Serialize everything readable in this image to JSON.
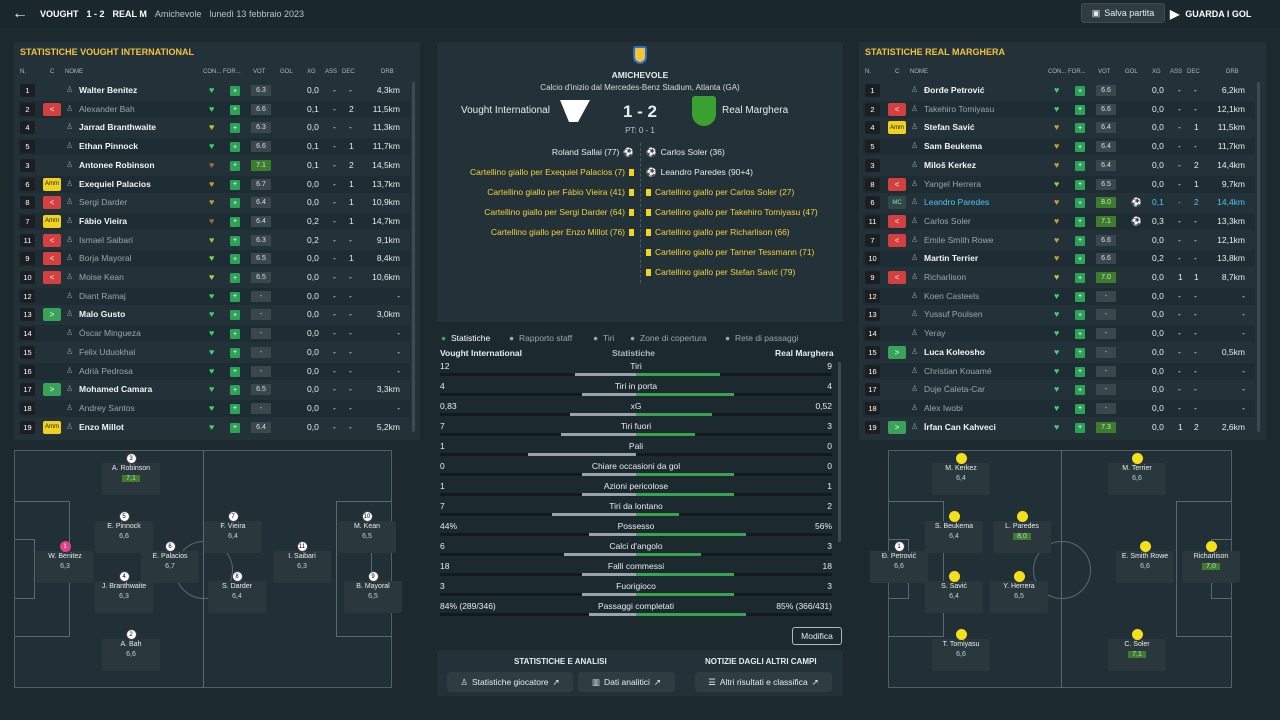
{
  "topbar": {
    "home": "VOUGHT",
    "score": "1 - 2",
    "away": "REAL M",
    "competition": "Amichevole",
    "date": "lunedì 13 febbraio 2023",
    "save": "Salva partita",
    "watch": "GUARDA I GOL"
  },
  "headers": {
    "n": "N.",
    "c": "C",
    "nome": "NOME",
    "con": "CON...",
    "for": "FOR...",
    "vot": "VOT",
    "gol": "GOL",
    "xg": "XG",
    "ass": "ASS",
    "dec": "DEC",
    "drb": "DRB"
  },
  "left": {
    "title": "STATISTICHE VOUGHT INTERNATIONAL",
    "players": [
      {
        "n": "1",
        "badge": "",
        "name": "Walter Benitez",
        "dim": false,
        "heart": "#3fd06a",
        "form": "+",
        "vot": "6.3",
        "vg": false,
        "gol": "",
        "xg": "0,0",
        "ass": "-",
        "dec": "-",
        "drb": "4,3km"
      },
      {
        "n": "2",
        "badge": "out",
        "name": "Alexander Bah",
        "dim": true,
        "heart": "#3fd06a",
        "form": "+",
        "vot": "6.6",
        "vg": false,
        "gol": "",
        "xg": "0,1",
        "ass": "-",
        "dec": "2",
        "drb": "11,5km"
      },
      {
        "n": "4",
        "badge": "",
        "name": "Jarrad Branthwaite",
        "dim": false,
        "heart": "#c6c23a",
        "form": "+",
        "vot": "6.3",
        "vg": false,
        "gol": "",
        "xg": "0,0",
        "ass": "-",
        "dec": "-",
        "drb": "11,3km"
      },
      {
        "n": "5",
        "badge": "",
        "name": "Ethan Pinnock",
        "dim": false,
        "heart": "#3fd06a",
        "form": "+",
        "vot": "6.6",
        "vg": false,
        "gol": "",
        "xg": "0,1",
        "ass": "-",
        "dec": "1",
        "drb": "11,7km"
      },
      {
        "n": "3",
        "badge": "",
        "name": "Antonee Robinson",
        "dim": false,
        "heart": "#a0703a",
        "form": "+",
        "vot": "7.1",
        "vg": true,
        "gol": "",
        "xg": "0,1",
        "ass": "-",
        "dec": "2",
        "drb": "14,5km"
      },
      {
        "n": "6",
        "badge": "amm",
        "name": "Exequiel Palacios",
        "dim": false,
        "heart": "#c89a3a",
        "form": "+",
        "vot": "6.7",
        "vg": false,
        "gol": "",
        "xg": "0,0",
        "ass": "-",
        "dec": "1",
        "drb": "13,7km"
      },
      {
        "n": "8",
        "badge": "out",
        "name": "Sergi Darder",
        "dim": true,
        "heart": "#c89a3a",
        "form": "+",
        "vot": "6.4",
        "vg": false,
        "gol": "",
        "xg": "0,0",
        "ass": "-",
        "dec": "1",
        "drb": "10,9km"
      },
      {
        "n": "7",
        "badge": "amm",
        "name": "Fábio Vieira",
        "dim": false,
        "heart": "#a0703a",
        "form": "+",
        "vot": "6.4",
        "vg": false,
        "gol": "",
        "xg": "0,2",
        "ass": "-",
        "dec": "1",
        "drb": "14,7km"
      },
      {
        "n": "11",
        "badge": "out",
        "name": "Ismael Saibari",
        "dim": true,
        "heart": "#7ad04a",
        "form": "+",
        "vot": "6.3",
        "vg": false,
        "gol": "",
        "xg": "0,2",
        "ass": "-",
        "dec": "-",
        "drb": "9,1km"
      },
      {
        "n": "9",
        "badge": "out",
        "name": "Borja Mayoral",
        "dim": true,
        "heart": "#7ad04a",
        "form": "+",
        "vot": "6.5",
        "vg": false,
        "gol": "",
        "xg": "0,0",
        "ass": "-",
        "dec": "1",
        "drb": "8,4km"
      },
      {
        "n": "10",
        "badge": "out",
        "name": "Moise Kean",
        "dim": true,
        "heart": "#c6c23a",
        "form": "+",
        "vot": "6.5",
        "vg": false,
        "gol": "",
        "xg": "0,0",
        "ass": "-",
        "dec": "-",
        "drb": "10,6km"
      },
      {
        "n": "12",
        "badge": "",
        "name": "Diant Ramaj",
        "dim": true,
        "heart": "#3fd06a",
        "form": "+",
        "vot": "-",
        "vg": false,
        "gol": "",
        "xg": "0,0",
        "ass": "-",
        "dec": "-",
        "drb": "-"
      },
      {
        "n": "13",
        "badge": "in",
        "name": "Malo Gusto",
        "dim": false,
        "heart": "#3fd06a",
        "form": "+",
        "vot": "-",
        "vg": false,
        "gol": "",
        "xg": "0,0",
        "ass": "-",
        "dec": "-",
        "drb": "3,0km"
      },
      {
        "n": "14",
        "badge": "",
        "name": "Óscar Mingueza",
        "dim": true,
        "heart": "#3fd06a",
        "form": "+",
        "vot": "-",
        "vg": false,
        "gol": "",
        "xg": "0,0",
        "ass": "-",
        "dec": "-",
        "drb": "-"
      },
      {
        "n": "15",
        "badge": "",
        "name": "Felix Uduokhai",
        "dim": true,
        "heart": "#3fd06a",
        "form": "+",
        "vot": "-",
        "vg": false,
        "gol": "",
        "xg": "0,0",
        "ass": "-",
        "dec": "-",
        "drb": "-"
      },
      {
        "n": "16",
        "badge": "",
        "name": "Adrià Pedrosa",
        "dim": true,
        "heart": "#3fd06a",
        "form": "+",
        "vot": "-",
        "vg": false,
        "gol": "",
        "xg": "0,0",
        "ass": "-",
        "dec": "-",
        "drb": "-"
      },
      {
        "n": "17",
        "badge": "in",
        "name": "Mohamed Camara",
        "dim": false,
        "heart": "#3fd06a",
        "form": "+",
        "vot": "6.5",
        "vg": false,
        "gol": "",
        "xg": "0,0",
        "ass": "-",
        "dec": "-",
        "drb": "3,3km"
      },
      {
        "n": "18",
        "badge": "",
        "name": "Andrey Santos",
        "dim": true,
        "heart": "#3fd06a",
        "form": "+",
        "vot": "-",
        "vg": false,
        "gol": "",
        "xg": "0,0",
        "ass": "-",
        "dec": "-",
        "drb": "-"
      },
      {
        "n": "19",
        "badge": "amm",
        "name": "Enzo Millot",
        "dim": false,
        "heart": "#3fd06a",
        "form": "+",
        "vot": "6.4",
        "vg": false,
        "gol": "",
        "xg": "0,0",
        "ass": "-",
        "dec": "-",
        "drb": "5,2km"
      }
    ],
    "pitch": [
      {
        "n": "3",
        "name": "A. Robinson",
        "r": "7,1",
        "g": true,
        "dot": "w"
      },
      {
        "n": "5",
        "name": "E. Pinnock",
        "r": "6,6",
        "g": false,
        "dot": "w"
      },
      {
        "n": "7",
        "name": "F. Vieira",
        "r": "6,4",
        "g": false,
        "dot": "w"
      },
      {
        "n": "10",
        "name": "M. Kean",
        "r": "6,5",
        "g": false,
        "dot": "w"
      },
      {
        "n": "1",
        "name": "W. Benitez",
        "r": "6,3",
        "g": false,
        "dot": "p"
      },
      {
        "n": "6",
        "name": "E. Palacios",
        "r": "6,7",
        "g": false,
        "dot": "w"
      },
      {
        "n": "11",
        "name": "I. Saibari",
        "r": "6,3",
        "g": false,
        "dot": "w"
      },
      {
        "n": "4",
        "name": "J. Branthwaite",
        "r": "6,3",
        "g": false,
        "dot": "w"
      },
      {
        "n": "8",
        "name": "S. Darder",
        "r": "6,4",
        "g": false,
        "dot": "w"
      },
      {
        "n": "9",
        "name": "B. Mayoral",
        "r": "6,5",
        "g": false,
        "dot": "w"
      },
      {
        "n": "2",
        "name": "A. Bah",
        "r": "6,6",
        "g": false,
        "dot": "w"
      }
    ]
  },
  "right": {
    "title": "STATISTICHE REAL MARGHERA",
    "players": [
      {
        "n": "1",
        "badge": "",
        "name": "Đorđe Petrović",
        "dim": false,
        "heart": "#3fd06a",
        "form": "+",
        "vot": "6.6",
        "vg": false,
        "gol": "",
        "xg": "0,0",
        "ass": "-",
        "dec": "-",
        "drb": "6,2km"
      },
      {
        "n": "2",
        "badge": "out",
        "name": "Takehiro Tomiyasu",
        "dim": true,
        "heart": "#3fd06a",
        "form": "+",
        "vot": "6.6",
        "vg": false,
        "gol": "",
        "xg": "0,0",
        "ass": "-",
        "dec": "-",
        "drb": "12,1km"
      },
      {
        "n": "4",
        "badge": "amm",
        "name": "Stefan Savić",
        "dim": false,
        "heart": "#c89a3a",
        "form": "+",
        "vot": "6.4",
        "vg": false,
        "gol": "",
        "xg": "0,0",
        "ass": "-",
        "dec": "1",
        "drb": "11,5km"
      },
      {
        "n": "5",
        "badge": "",
        "name": "Sam Beukema",
        "dim": false,
        "heart": "#c89a3a",
        "form": "+",
        "vot": "6.4",
        "vg": false,
        "gol": "",
        "xg": "0,0",
        "ass": "-",
        "dec": "-",
        "drb": "11,7km"
      },
      {
        "n": "3",
        "badge": "",
        "name": "Miloš Kerkez",
        "dim": false,
        "heart": "#c89a3a",
        "form": "+",
        "vot": "6.4",
        "vg": false,
        "gol": "",
        "xg": "0,0",
        "ass": "-",
        "dec": "2",
        "drb": "14,4km"
      },
      {
        "n": "8",
        "badge": "out",
        "name": "Yangel Herrera",
        "dim": true,
        "heart": "#7ad04a",
        "form": "+",
        "vot": "6.5",
        "vg": false,
        "gol": "",
        "xg": "0,0",
        "ass": "-",
        "dec": "1",
        "drb": "9,7km"
      },
      {
        "n": "6",
        "badge": "mc",
        "name": "Leandro Paredes",
        "dim": false,
        "hl": true,
        "heart": "#c89a3a",
        "form": "+",
        "vot": "8.0",
        "vg": true,
        "gol": "⚽",
        "xg": "0,1",
        "ass": "-",
        "dec": "2",
        "drb": "14,4km"
      },
      {
        "n": "11",
        "badge": "out",
        "name": "Carlos Soler",
        "dim": true,
        "heart": "#c89a3a",
        "form": "+",
        "vot": "7.1",
        "vg": true,
        "gol": "⚽",
        "xg": "0,3",
        "ass": "-",
        "dec": "-",
        "drb": "13,3km"
      },
      {
        "n": "7",
        "badge": "out",
        "name": "Emile Smith Rowe",
        "dim": true,
        "heart": "#c89a3a",
        "form": "+",
        "vot": "6.6",
        "vg": false,
        "gol": "",
        "xg": "0,0",
        "ass": "-",
        "dec": "-",
        "drb": "12,1km"
      },
      {
        "n": "10",
        "badge": "",
        "name": "Martin Terrier",
        "dim": false,
        "heart": "#c89a3a",
        "form": "+",
        "vot": "6.6",
        "vg": false,
        "gol": "",
        "xg": "0,2",
        "ass": "-",
        "dec": "-",
        "drb": "13,8km"
      },
      {
        "n": "9",
        "badge": "out",
        "name": "Richarlison",
        "dim": true,
        "heart": "#c6c23a",
        "form": "+",
        "vot": "7.0",
        "vg": true,
        "gol": "",
        "xg": "0,0",
        "ass": "1",
        "dec": "1",
        "drb": "8,7km"
      },
      {
        "n": "12",
        "badge": "",
        "name": "Koen Casteels",
        "dim": true,
        "heart": "#3fd06a",
        "form": "+",
        "vot": "-",
        "vg": false,
        "gol": "",
        "xg": "0,0",
        "ass": "-",
        "dec": "-",
        "drb": "-"
      },
      {
        "n": "13",
        "badge": "",
        "name": "Yussuf Poulsen",
        "dim": true,
        "heart": "#3fd06a",
        "form": "+",
        "vot": "-",
        "vg": false,
        "gol": "",
        "xg": "0,0",
        "ass": "-",
        "dec": "-",
        "drb": "-"
      },
      {
        "n": "14",
        "badge": "",
        "name": "Yeray",
        "dim": true,
        "heart": "#3fd06a",
        "form": "+",
        "vot": "-",
        "vg": false,
        "gol": "",
        "xg": "0,0",
        "ass": "-",
        "dec": "-",
        "drb": "-"
      },
      {
        "n": "15",
        "badge": "in",
        "name": "Luca Koleosho",
        "dim": false,
        "heart": "#3fd06a",
        "form": "+",
        "vot": "-",
        "vg": false,
        "gol": "",
        "xg": "0,0",
        "ass": "-",
        "dec": "-",
        "drb": "0,5km"
      },
      {
        "n": "16",
        "badge": "",
        "name": "Christian Kouamé",
        "dim": true,
        "heart": "#3fd06a",
        "form": "+",
        "vot": "-",
        "vg": false,
        "gol": "",
        "xg": "0,0",
        "ass": "-",
        "dec": "-",
        "drb": "-"
      },
      {
        "n": "17",
        "badge": "",
        "name": "Duje Ćaleta-Car",
        "dim": true,
        "heart": "#3fd06a",
        "form": "+",
        "vot": "-",
        "vg": false,
        "gol": "",
        "xg": "0,0",
        "ass": "-",
        "dec": "-",
        "drb": "-"
      },
      {
        "n": "18",
        "badge": "",
        "name": "Alex Iwobi",
        "dim": true,
        "heart": "#3fd06a",
        "form": "+",
        "vot": "-",
        "vg": false,
        "gol": "",
        "xg": "0,0",
        "ass": "-",
        "dec": "-",
        "drb": "-"
      },
      {
        "n": "19",
        "badge": "in",
        "name": "İrfan Can Kahveci",
        "dim": false,
        "heart": "#3fd06a",
        "form": "+",
        "vot": "7.3",
        "vg": true,
        "gol": "",
        "xg": "0,0",
        "ass": "1",
        "dec": "2",
        "drb": "2,6km"
      }
    ],
    "pitch": [
      {
        "n": "",
        "name": "M. Kerkez",
        "r": "6,4",
        "g": false,
        "dot": "y"
      },
      {
        "n": "",
        "name": "M. Terrier",
        "r": "6,6",
        "g": false,
        "dot": "y"
      },
      {
        "n": "",
        "name": "S. Beukema",
        "r": "6,4",
        "g": false,
        "dot": "y"
      },
      {
        "n": "",
        "name": "L. Paredes",
        "r": "8,0",
        "g": true,
        "dot": "y"
      },
      {
        "n": "1",
        "name": "Đ. Petrović",
        "r": "6,6",
        "g": false,
        "dot": "w"
      },
      {
        "n": "",
        "name": "E. Smith Rowe",
        "r": "6,6",
        "g": false,
        "dot": "y"
      },
      {
        "n": "",
        "name": "Richarlison",
        "r": "7,0",
        "g": true,
        "dot": "y"
      },
      {
        "n": "",
        "name": "S. Savić",
        "r": "6,4",
        "g": false,
        "dot": "y"
      },
      {
        "n": "",
        "name": "Y. Herrera",
        "r": "6,5",
        "g": false,
        "dot": "y"
      },
      {
        "n": "",
        "name": "T. Tomiyasu",
        "r": "6,6",
        "g": false,
        "dot": "y"
      },
      {
        "n": "",
        "name": "C. Soler",
        "r": "7,1",
        "g": true,
        "dot": "y"
      }
    ]
  },
  "match": {
    "comp": "AMICHEVOLE",
    "venue": "Calcio d'inizio dal Mercedes-Benz Stadium, Atlanta (GA)",
    "home": "Vought International",
    "away": "Real Marghera",
    "score": "1 - 2",
    "ht": "PT: 0 - 1",
    "home_events": [
      "Roland Sallai (77)",
      "Cartellino giallo per Exequiel Palacios (7)",
      "Cartellino giallo per Fábio Vieira (41)",
      "Cartellino giallo per Sergi Darder (64)",
      "Cartellino giallo per Enzo Millot (76)"
    ],
    "away_events": [
      "Carlos Soler (36)",
      "Leandro Paredes (90+4)",
      "Cartellino giallo per Carlos Soler (27)",
      "Cartellino giallo per Takehiro Tomiyasu (47)",
      "Cartellino giallo per Richarlison (66)",
      "Cartellino giallo per Tanner Tessmann (71)",
      "Cartellino giallo per Stefan Savić (79)"
    ]
  },
  "tabs": [
    "Statistiche",
    "Rapporto staff",
    "Tiri",
    "Zone di copertura",
    "Rete di passaggi"
  ],
  "stats_header": {
    "home": "Vought International",
    "mid": "Statistiche",
    "away": "Real Marghera"
  },
  "stats": [
    {
      "l": "12",
      "name": "Tiri",
      "r": "9",
      "lp": 0.57,
      "rp": 0.43
    },
    {
      "l": "4",
      "name": "Tiri in porta",
      "r": "4",
      "lp": 0.5,
      "rp": 0.5
    },
    {
      "l": "0,83",
      "name": "xG",
      "r": "0,52",
      "lp": 0.61,
      "rp": 0.39
    },
    {
      "l": "7",
      "name": "Tiri fuori",
      "r": "3",
      "lp": 0.7,
      "rp": 0.3
    },
    {
      "l": "1",
      "name": "Pali",
      "r": "0",
      "lp": 1,
      "rp": 0
    },
    {
      "l": "0",
      "name": "Chiare occasioni da gol",
      "r": "0",
      "lp": 0.5,
      "rp": 0.5
    },
    {
      "l": "1",
      "name": "Azioni pericolose",
      "r": "1",
      "lp": 0.5,
      "rp": 0.5
    },
    {
      "l": "7",
      "name": "Tiri da lontano",
      "r": "2",
      "lp": 0.78,
      "rp": 0.22
    },
    {
      "l": "44%",
      "name": "Possesso",
      "r": "56%",
      "lp": 0.44,
      "rp": 0.56
    },
    {
      "l": "6",
      "name": "Calci d'angolo",
      "r": "3",
      "lp": 0.67,
      "rp": 0.33
    },
    {
      "l": "18",
      "name": "Falli commessi",
      "r": "18",
      "lp": 0.5,
      "rp": 0.5
    },
    {
      "l": "3",
      "name": "Fuorigioco",
      "r": "3",
      "lp": 0.5,
      "rp": 0.5
    },
    {
      "l": "84% (289/346)",
      "name": "Passaggi completati",
      "r": "85% (366/431)",
      "lp": 0.44,
      "rp": 0.56
    }
  ],
  "modifica": "Modifica",
  "bottom": {
    "left_title": "STATISTICHE E ANALISI",
    "right_title": "NOTIZIE DAGLI ALTRI CAMPI",
    "b1": "Statistiche giocatore",
    "b2": "Dati analitici",
    "b3": "Altri risultati e classifica"
  },
  "colors": {
    "accent": "#f5c23d",
    "green": "#3aa352",
    "red": "#d4403f"
  }
}
